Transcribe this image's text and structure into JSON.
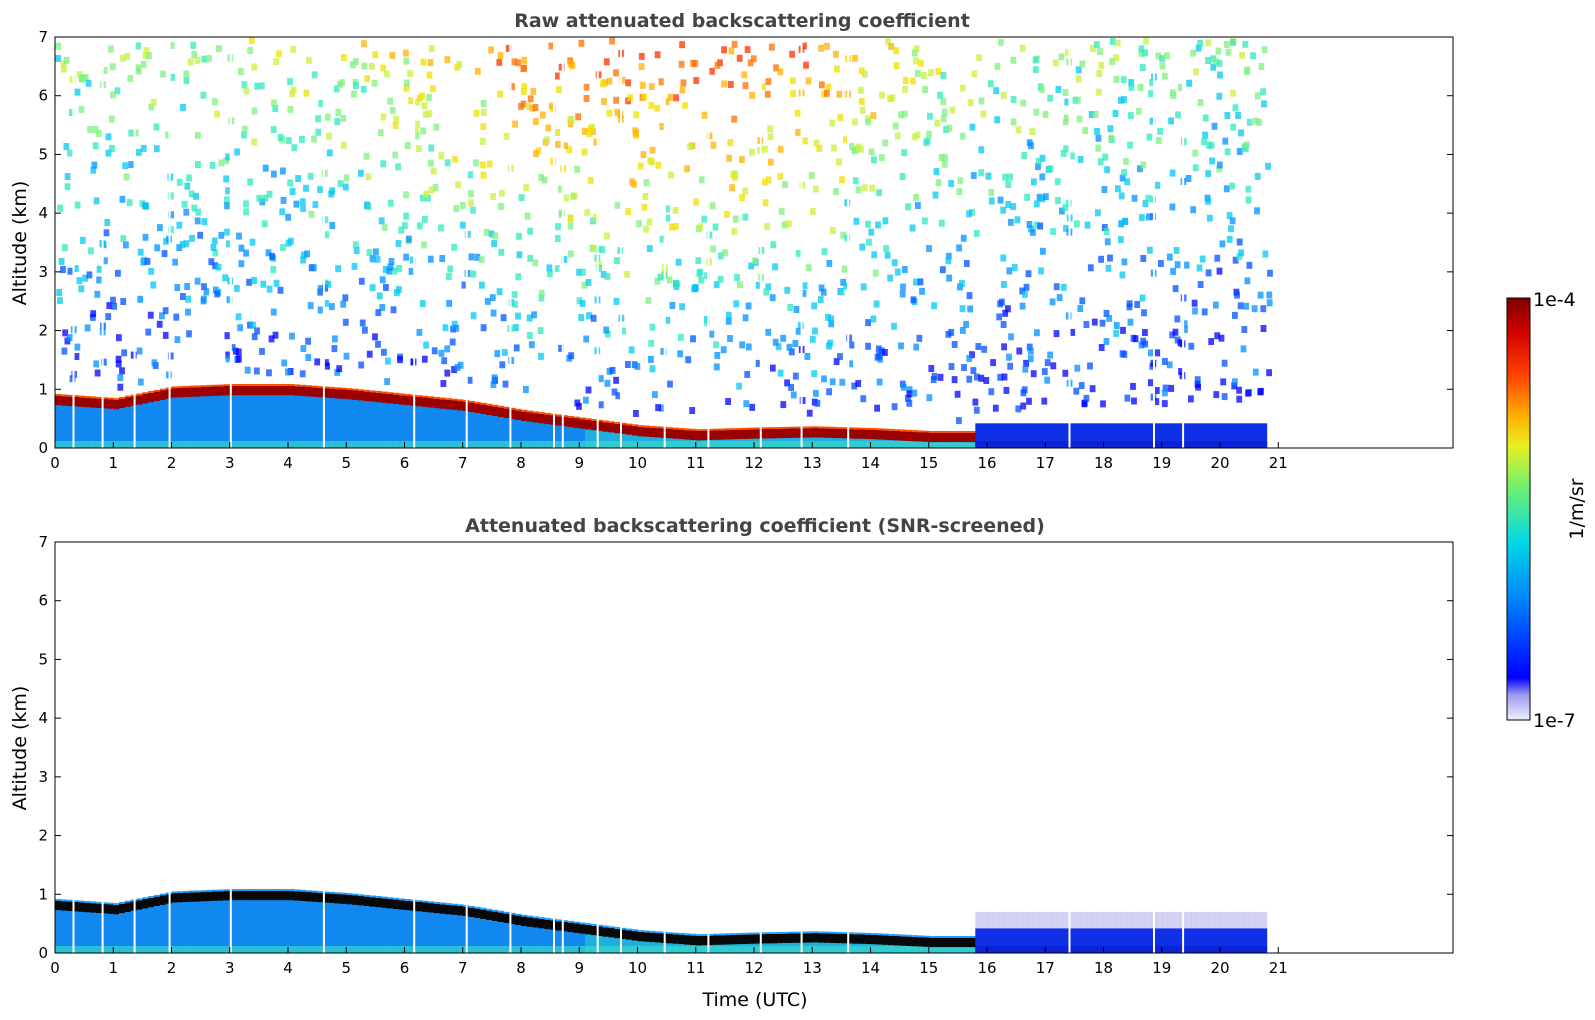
{
  "chart_data": [
    {
      "type": "heatmap",
      "title": "Raw attenuated backscattering coefficient",
      "xlabel": "",
      "ylabel": "Altitude (km)",
      "xlim": [
        0,
        24
      ],
      "ylim": [
        0,
        7
      ],
      "x_ticks": [
        "0",
        "1",
        "2",
        "3",
        "4",
        "5",
        "6",
        "7",
        "8",
        "9",
        "10",
        "11",
        "12",
        "13",
        "14",
        "15",
        "16",
        "17",
        "18",
        "19",
        "20",
        "21"
      ],
      "y_ticks": [
        "0",
        "1",
        "2",
        "3",
        "4",
        "5",
        "6",
        "7"
      ],
      "data_end_time_utc": 20.75,
      "layer_top_km": [
        {
          "t": 0,
          "z": 0.85
        },
        {
          "t": 1,
          "z": 0.78
        },
        {
          "t": 2,
          "z": 0.98
        },
        {
          "t": 3,
          "z": 1.02
        },
        {
          "t": 4,
          "z": 1.02
        },
        {
          "t": 5,
          "z": 0.95
        },
        {
          "t": 6,
          "z": 0.85
        },
        {
          "t": 7,
          "z": 0.75
        },
        {
          "t": 8,
          "z": 0.58
        },
        {
          "t": 9,
          "z": 0.45
        },
        {
          "t": 10,
          "z": 0.32
        },
        {
          "t": 11,
          "z": 0.25
        },
        {
          "t": 12,
          "z": 0.28
        },
        {
          "t": 13,
          "z": 0.3
        },
        {
          "t": 14,
          "z": 0.27
        },
        {
          "t": 15,
          "z": 0.22
        },
        {
          "t": 15.7,
          "z": 0.22
        }
      ],
      "noise_intensity": [
        {
          "t": 0,
          "v": 0.45
        },
        {
          "t": 4,
          "v": 0.5
        },
        {
          "t": 7,
          "v": 0.65
        },
        {
          "t": 8,
          "v": 0.78
        },
        {
          "t": 10,
          "v": 0.85
        },
        {
          "t": 12,
          "v": 0.82
        },
        {
          "t": 13.5,
          "v": 0.7
        },
        {
          "t": 15,
          "v": 0.55
        },
        {
          "t": 17,
          "v": 0.45
        },
        {
          "t": 20.75,
          "v": 0.42
        }
      ]
    },
    {
      "type": "heatmap",
      "title": "Attenuated backscattering coefficient (SNR-screened)",
      "xlabel": "Time (UTC)",
      "ylabel": "Altitude (km)",
      "xlim": [
        0,
        24
      ],
      "ylim": [
        0,
        7
      ],
      "x_ticks": [
        "0",
        "1",
        "2",
        "3",
        "4",
        "5",
        "6",
        "7",
        "8",
        "9",
        "10",
        "11",
        "12",
        "13",
        "14",
        "15",
        "16",
        "17",
        "18",
        "19",
        "20",
        "21"
      ],
      "y_ticks": [
        "0",
        "1",
        "2",
        "3",
        "4",
        "5",
        "6",
        "7"
      ],
      "data_end_time_utc": 20.75
    }
  ],
  "colorbar": {
    "label": "1/m/sr",
    "max_label": "1e-4",
    "min_label": "1e-7",
    "scale": "log",
    "colors": [
      "#ffffff",
      "#c8c8f0",
      "#0000ff",
      "#00a0ff",
      "#00e0e0",
      "#80ff80",
      "#ffff00",
      "#ff9000",
      "#ff2000",
      "#800000"
    ]
  }
}
